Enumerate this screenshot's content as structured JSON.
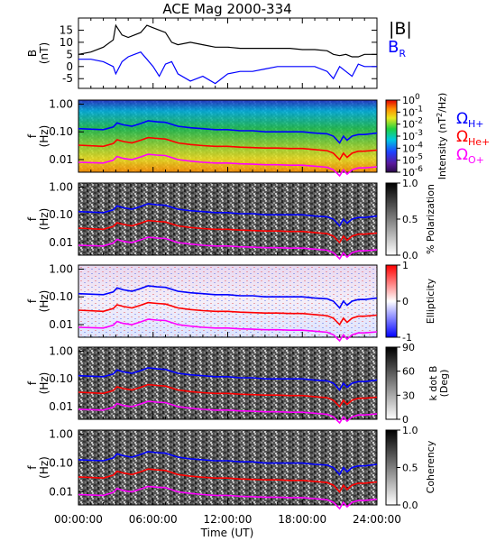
{
  "figure": {
    "title": "ACE Mag 2000-334",
    "xlabel": "Time (UT)",
    "xticks": [
      "00:00:00",
      "06:00:00",
      "12:00:00",
      "18:00:00",
      "24:00:00"
    ]
  },
  "legend": {
    "btotal": "|B|",
    "br_main": "B",
    "br_sub": "R",
    "omega": "Ω",
    "hplus": "H+",
    "heplus": "He+",
    "oplus": "O+"
  },
  "colors": {
    "btotal": "#000000",
    "br": "#0000ff",
    "hplus": "#0000ff",
    "heplus": "#ff0000",
    "oplus": "#ff00ff"
  },
  "freq_tick_labels": [
    "1.00",
    "0.10",
    "0.01"
  ],
  "panels": [
    {
      "id": "intensity",
      "cb_label": "Intensity (nT²/Hz)",
      "cb_ticks": [
        {
          "base": "10",
          "exp": "0"
        },
        {
          "base": "10",
          "exp": "-1"
        },
        {
          "base": "10",
          "exp": "-2"
        },
        {
          "base": "10",
          "exp": "-3"
        },
        {
          "base": "10",
          "exp": "-4"
        },
        {
          "base": "10",
          "exp": "-5"
        },
        {
          "base": "10",
          "exp": "-6"
        }
      ]
    },
    {
      "id": "polarization",
      "cb_label": "% Polarization",
      "cb_ticks": [
        "1.0",
        "0.5",
        "0.0"
      ]
    },
    {
      "id": "ellipticity",
      "cb_label": "Ellipticity",
      "cb_ticks": [
        "1",
        "0",
        "-1"
      ]
    },
    {
      "id": "kdotb",
      "cb_label": "k dot B (Deg)",
      "cb_line1": "k dot B",
      "cb_line2": "(Deg)",
      "cb_ticks": [
        "90",
        "60",
        "30",
        "0"
      ]
    },
    {
      "id": "coherency",
      "cb_label": "Coherency",
      "cb_ticks": [
        "1.0",
        "0.5",
        "0.0"
      ]
    }
  ],
  "chart_data": {
    "type": "line",
    "title": "ACE Mag 2000-334",
    "xlabel": "Time (UT)",
    "x_unit": "hours UT",
    "xlim": [
      0,
      24
    ],
    "field_panel": {
      "ylabel": "B (nT)",
      "ylim": [
        -9,
        20
      ],
      "yticks": [
        15,
        10,
        5,
        0,
        -5
      ],
      "x": [
        0,
        1,
        2,
        2.8,
        3,
        3.5,
        4,
        4.5,
        5,
        5.5,
        6,
        6.5,
        7,
        7.5,
        8,
        9,
        10,
        11,
        12,
        13,
        14,
        15,
        16,
        17,
        18,
        19,
        20,
        20.5,
        21,
        21.5,
        22,
        22.5,
        23,
        24
      ],
      "series": [
        {
          "name": "|B|",
          "color": "#000000",
          "values": [
            5,
            6,
            8,
            11,
            17,
            13,
            12,
            13,
            14,
            17,
            16,
            15,
            14,
            10,
            9,
            10,
            9,
            8,
            8,
            7.5,
            7.5,
            7.5,
            7.5,
            7.5,
            7,
            7,
            6.5,
            5,
            4.5,
            5,
            4,
            4,
            5,
            5
          ]
        },
        {
          "name": "B_R",
          "color": "#0000ff",
          "values": [
            3,
            3,
            2,
            0,
            -3,
            2,
            4,
            5,
            6,
            3,
            0,
            -4,
            1,
            2,
            -3,
            -6,
            -4,
            -7,
            -3,
            -2,
            -2,
            -1,
            0,
            0,
            0,
            0,
            -2,
            -5,
            0,
            -2,
            -4,
            1,
            0,
            0
          ]
        }
      ]
    },
    "spectrogram_panels": {
      "ylabel": "f (Hz)",
      "ylim": [
        0.0035,
        1.4
      ],
      "yscale": "log",
      "yticks": [
        1.0,
        0.1,
        0.01
      ]
    },
    "cyclotron_frequencies": {
      "x": [
        0,
        2,
        2.8,
        3.1,
        3.6,
        4.3,
        5,
        5.6,
        6.3,
        7,
        8,
        9,
        10,
        11,
        12,
        13,
        14,
        15,
        16,
        17,
        18,
        19,
        20,
        20.5,
        21,
        21.3,
        21.6,
        22,
        22.5,
        23,
        24
      ],
      "series": [
        {
          "name": "Ω H+",
          "color": "#0000ff",
          "values": [
            0.13,
            0.12,
            0.15,
            0.21,
            0.18,
            0.16,
            0.2,
            0.25,
            0.23,
            0.22,
            0.16,
            0.14,
            0.13,
            0.12,
            0.12,
            0.11,
            0.11,
            0.1,
            0.1,
            0.1,
            0.1,
            0.09,
            0.085,
            0.07,
            0.04,
            0.07,
            0.05,
            0.07,
            0.08,
            0.08,
            0.09
          ]
        },
        {
          "name": "Ω He+",
          "color": "#ff0000",
          "values": [
            0.033,
            0.03,
            0.038,
            0.052,
            0.045,
            0.04,
            0.05,
            0.062,
            0.058,
            0.055,
            0.04,
            0.035,
            0.032,
            0.03,
            0.03,
            0.028,
            0.027,
            0.026,
            0.026,
            0.025,
            0.025,
            0.023,
            0.021,
            0.017,
            0.01,
            0.017,
            0.012,
            0.017,
            0.02,
            0.02,
            0.022
          ]
        },
        {
          "name": "Ω O+",
          "color": "#ff00ff",
          "values": [
            0.008,
            0.0075,
            0.0095,
            0.013,
            0.011,
            0.01,
            0.0125,
            0.0155,
            0.0145,
            0.014,
            0.01,
            0.0088,
            0.008,
            0.0075,
            0.0075,
            0.007,
            0.0068,
            0.0065,
            0.0065,
            0.0063,
            0.0063,
            0.0058,
            0.0053,
            0.0043,
            0.0026,
            0.0043,
            0.003,
            0.0043,
            0.005,
            0.005,
            0.0055
          ]
        }
      ]
    }
  }
}
